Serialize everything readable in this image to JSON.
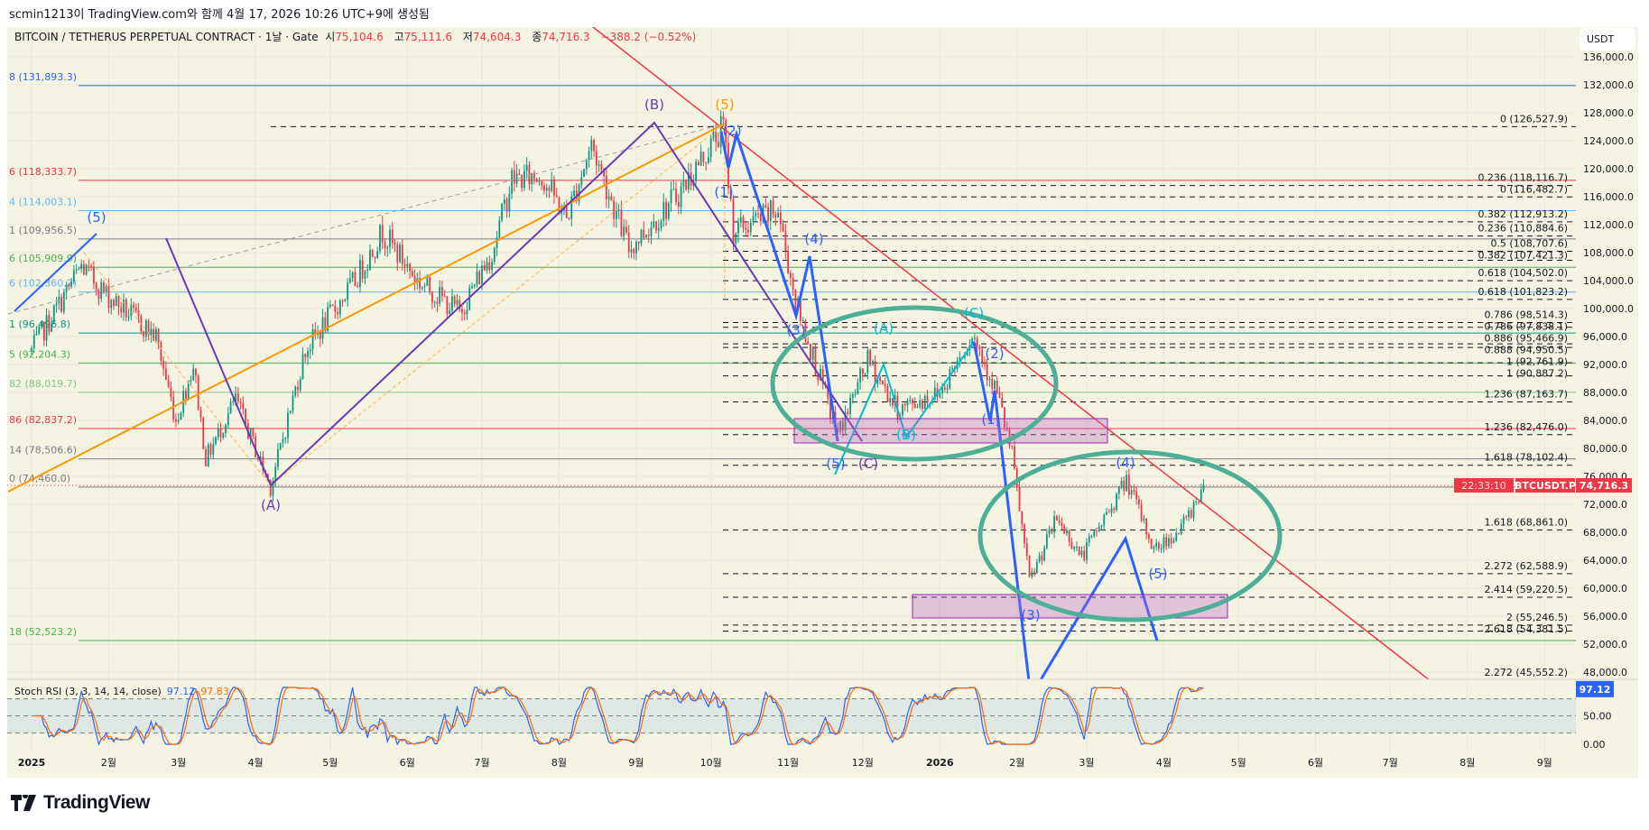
{
  "caption": "scmin1213이 TradingView.com와 함께 4월 17, 2026 10:26 UTC+9에 생성됨",
  "header": {
    "symbol": "BITCOIN / TETHERUS PERPETUAL CONTRACT · 1날 · Gate",
    "open_label": "시",
    "open": "75,104.6",
    "high_label": "고",
    "high": "75,111.6",
    "low_label": "저",
    "low": "74,604.3",
    "close_label": "종",
    "close": "74,716.3",
    "change": "−388.2 (−0.52%)"
  },
  "currency": "USDT",
  "last_price": {
    "ticker": "BTCUSDT.P",
    "price": "74,716.3",
    "countdown": "22:33:10",
    "value": 74716.3
  },
  "stoch_rsi": {
    "title": "Stoch RSI (3, 3, 14, 14, close)",
    "k": "97.12",
    "d": "97.83",
    "axis": [
      "50.00",
      "0.00"
    ]
  },
  "brand": "TradingView",
  "colors": {
    "up": "#089981",
    "down": "#f23645",
    "panel": "#f5f3e2",
    "wave_blue": "#2962ff",
    "wave_cyan": "#00bcd4",
    "purple": "#673ab7",
    "orange": "#ff9800",
    "ellipse": "#4caf96",
    "trend_red": "#f23645"
  },
  "chart_data": {
    "type": "candlestick",
    "title": "BITCOIN / TETHERUS PERPETUAL CONTRACT · 1D · Gate",
    "ylabel": "USDT",
    "ylim": [
      46000,
      138000
    ],
    "price_ticks": [
      "136,000.0",
      "132,000.0",
      "128,000.0",
      "124,000.0",
      "120,000.0",
      "116,000.0",
      "112,000.0",
      "108,000.0",
      "104,000.0",
      "100,000.0",
      "96,000.0",
      "92,000.0",
      "88,000.0",
      "84,000.0",
      "80,000.0",
      "76,000.0",
      "72,000.0",
      "68,000.0",
      "64,000.0",
      "60,000.0",
      "56,000.0",
      "52,000.0",
      "48,000.0"
    ],
    "time_ticks": [
      "2025",
      "2월",
      "3월",
      "4월",
      "5월",
      "6월",
      "7월",
      "8월",
      "9월",
      "10월",
      "11월",
      "12월",
      "2026",
      "2월",
      "3월",
      "4월",
      "5월",
      "6월",
      "7월",
      "8월",
      "9월"
    ],
    "price_path_approx": [
      {
        "day": 0,
        "price": 94000
      },
      {
        "day": 20,
        "price": 106000
      },
      {
        "day": 30,
        "price": 102000
      },
      {
        "day": 50,
        "price": 96000
      },
      {
        "day": 58,
        "price": 84000
      },
      {
        "day": 65,
        "price": 92000
      },
      {
        "day": 70,
        "price": 78500
      },
      {
        "day": 82,
        "price": 87000
      },
      {
        "day": 96,
        "price": 74500
      },
      {
        "day": 110,
        "price": 94000
      },
      {
        "day": 130,
        "price": 104000
      },
      {
        "day": 141,
        "price": 111000
      },
      {
        "day": 155,
        "price": 104000
      },
      {
        "day": 172,
        "price": 99500
      },
      {
        "day": 185,
        "price": 108000
      },
      {
        "day": 193,
        "price": 118500
      },
      {
        "day": 205,
        "price": 119000
      },
      {
        "day": 215,
        "price": 113000
      },
      {
        "day": 225,
        "price": 123500
      },
      {
        "day": 240,
        "price": 108500
      },
      {
        "day": 260,
        "price": 116500
      },
      {
        "day": 278,
        "price": 126000
      },
      {
        "day": 282,
        "price": 111000
      },
      {
        "day": 300,
        "price": 114000
      },
      {
        "day": 307,
        "price": 101000
      },
      {
        "day": 324,
        "price": 82000
      },
      {
        "day": 336,
        "price": 92500
      },
      {
        "day": 348,
        "price": 85500
      },
      {
        "day": 365,
        "price": 88000
      },
      {
        "day": 378,
        "price": 96500
      },
      {
        "day": 388,
        "price": 88000
      },
      {
        "day": 394,
        "price": 79000
      },
      {
        "day": 401,
        "price": 61000
      },
      {
        "day": 412,
        "price": 70000
      },
      {
        "day": 422,
        "price": 64500
      },
      {
        "day": 440,
        "price": 75500
      },
      {
        "day": 451,
        "price": 65500
      },
      {
        "day": 462,
        "price": 68500
      },
      {
        "day": 471,
        "price": 74716
      }
    ],
    "fib_levels_right": [
      {
        "label": "0 (126,527.9)",
        "price": 126527.9
      },
      {
        "label": "0.236 (118,116.7)",
        "price": 118116.7
      },
      {
        "label": "0 (116,482.7)",
        "price": 116482.7
      },
      {
        "label": "0.382 (112,913.2)",
        "price": 112913.2
      },
      {
        "label": "0.236 (110,884.6)",
        "price": 110884.6
      },
      {
        "label": "0.5 (108,707.6)",
        "price": 108707.6
      },
      {
        "label": "0.382 (107,421.3)",
        "price": 107421.3
      },
      {
        "label": "0.618 (104,502.0)",
        "price": 104502.0
      },
      {
        "label": "0.618 (101,823.2)",
        "price": 101823.2
      },
      {
        "label": "0.786 (98,514.3)",
        "price": 98514.3
      },
      {
        "label": "0.786 (97,838.1)",
        "price": 97838.1
      },
      {
        "label": "0.886 (95,466.9)",
        "price": 95466.9
      },
      {
        "label": "0.888 (94,950.5)",
        "price": 94950.5
      },
      {
        "label": "1 (92,761.9)",
        "price": 92761.9
      },
      {
        "label": "1 (90,887.2)",
        "price": 90887.2
      },
      {
        "label": "1.236 (87,163.7)",
        "price": 87163.7
      },
      {
        "label": "1.236 (82,476.0)",
        "price": 82476.0
      },
      {
        "label": "1.618 (78,102.4)",
        "price": 78102.4
      },
      {
        "label": "1.618 (68,861.0)",
        "price": 68861.0
      },
      {
        "label": "2.272 (62,588.9)",
        "price": 62588.9
      },
      {
        "label": "2.414 (59,220.5)",
        "price": 59220.5
      },
      {
        "label": "2 (55,246.5)",
        "price": 55246.5
      },
      {
        "label": "2.618 (54,381.5)",
        "price": 54381.5
      },
      {
        "label": "2.272 (45,552.2)",
        "price": 45552.2
      }
    ],
    "fib_levels_left": [
      {
        "label": "8 (131,893.3)",
        "price": 131893.3,
        "color": "#2962ff"
      },
      {
        "label": "6 (118,333.7)",
        "price": 118333.7,
        "color": "#f23645"
      },
      {
        "label": "4 (114,003.1)",
        "price": 114003.1,
        "color": "#64b5f6"
      },
      {
        "label": "1 (109,956.5)",
        "price": 109956.5,
        "color": "#787b86"
      },
      {
        "label": "6 (105,909.9)",
        "price": 105909.9,
        "color": "#4caf50"
      },
      {
        "label": "6 (102,360.2)",
        "price": 102360.2,
        "color": "#64b5f6"
      },
      {
        "label": "1 (96,496.8)",
        "price": 96496.8,
        "color": "#089981"
      },
      {
        "label": "5 (92,204.3)",
        "price": 92204.3,
        "color": "#4caf50"
      },
      {
        "label": "82 (88,019.7)",
        "price": 88019.7,
        "color": "#81c784"
      },
      {
        "label": "86 (82,837.2)",
        "price": 82837.2,
        "color": "#f23645"
      },
      {
        "label": "14 (78,506.6)",
        "price": 78506.6,
        "color": "#787b86"
      },
      {
        "label": "0 (74,460.0)",
        "price": 74460.0,
        "color": "#787b86"
      },
      {
        "label": "18 (52,523.2)",
        "price": 52523.2,
        "color": "#4caf50"
      }
    ],
    "wave_labels": [
      "(5)",
      "(A)",
      "(B)",
      "(C)",
      "(5)",
      "(1)",
      "(2)",
      "(3)",
      "(4)",
      "(5)",
      "(A)",
      "(B)",
      "(C)",
      "(1)",
      "(2)",
      "(3)",
      "(4)",
      "(5)"
    ]
  }
}
